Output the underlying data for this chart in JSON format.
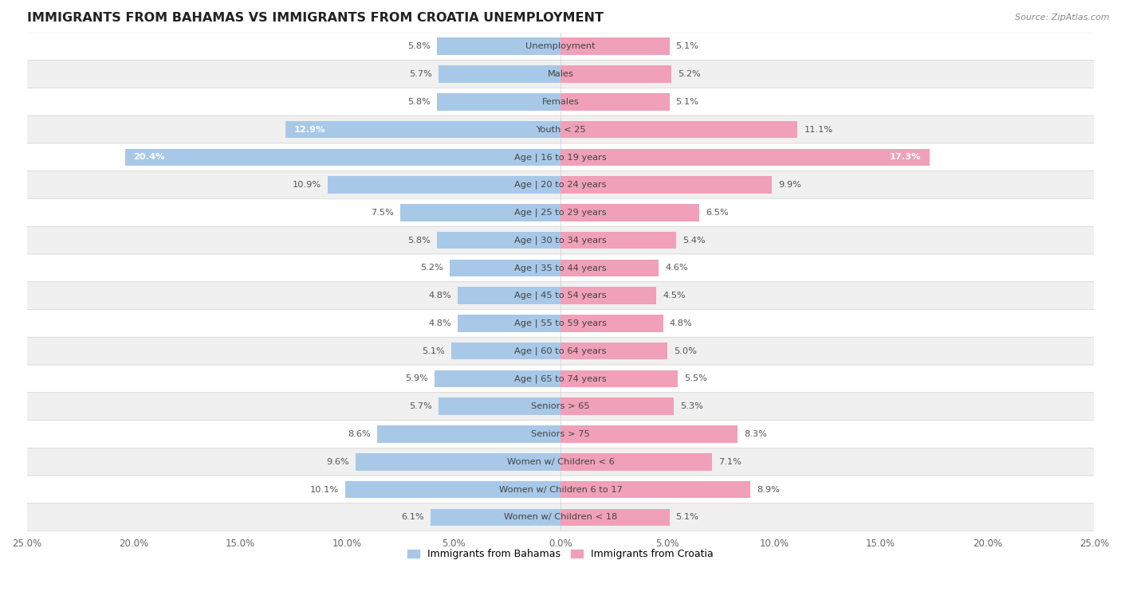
{
  "title": "IMMIGRANTS FROM BAHAMAS VS IMMIGRANTS FROM CROATIA UNEMPLOYMENT",
  "source": "Source: ZipAtlas.com",
  "categories": [
    "Unemployment",
    "Males",
    "Females",
    "Youth < 25",
    "Age | 16 to 19 years",
    "Age | 20 to 24 years",
    "Age | 25 to 29 years",
    "Age | 30 to 34 years",
    "Age | 35 to 44 years",
    "Age | 45 to 54 years",
    "Age | 55 to 59 years",
    "Age | 60 to 64 years",
    "Age | 65 to 74 years",
    "Seniors > 65",
    "Seniors > 75",
    "Women w/ Children < 6",
    "Women w/ Children 6 to 17",
    "Women w/ Children < 18"
  ],
  "bahamas": [
    5.8,
    5.7,
    5.8,
    12.9,
    20.4,
    10.9,
    7.5,
    5.8,
    5.2,
    4.8,
    4.8,
    5.1,
    5.9,
    5.7,
    8.6,
    9.6,
    10.1,
    6.1
  ],
  "croatia": [
    5.1,
    5.2,
    5.1,
    11.1,
    17.3,
    9.9,
    6.5,
    5.4,
    4.6,
    4.5,
    4.8,
    5.0,
    5.5,
    5.3,
    8.3,
    7.1,
    8.9,
    5.1
  ],
  "bahamas_color": "#A8C8E8",
  "croatia_color": "#F0A0B8",
  "background_color": "#ffffff",
  "row_color_light": "#ffffff",
  "row_color_dark": "#f0f0f0",
  "row_border_color": "#d8d8d8",
  "xlim": 25.0,
  "legend_bahamas": "Immigrants from Bahamas",
  "legend_croatia": "Immigrants from Croatia",
  "value_inside_threshold": 12.0
}
